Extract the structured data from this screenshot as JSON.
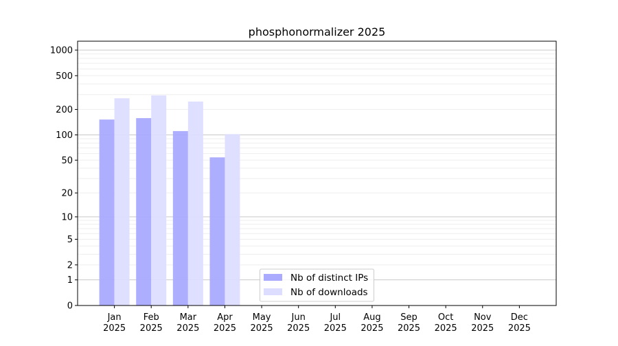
{
  "chart_data": {
    "type": "bar",
    "title": "phosphonormalizer 2025",
    "xlabel": "",
    "ylabel": "",
    "yscale": "log(1+y)",
    "ylim": [
      0,
      1273
    ],
    "yticks": [
      0,
      1,
      2,
      5,
      10,
      20,
      50,
      100,
      200,
      500,
      1000
    ],
    "grid": true,
    "legend_position": "lower-center",
    "categories": [
      "Jan\n2025",
      "Feb\n2025",
      "Mar\n2025",
      "Apr\n2025",
      "May\n2025",
      "Jun\n2025",
      "Jul\n2025",
      "Aug\n2025",
      "Sep\n2025",
      "Oct\n2025",
      "Nov\n2025",
      "Dec\n2025"
    ],
    "series": [
      {
        "name": "Nb of distinct IPs",
        "color": "#aaaaff",
        "values": [
          152,
          158,
          111,
          54,
          0,
          0,
          0,
          0,
          0,
          0,
          0,
          0
        ]
      },
      {
        "name": "Nb of downloads",
        "color": "#ddddff",
        "values": [
          271,
          293,
          248,
          102,
          0,
          0,
          0,
          0,
          0,
          0,
          0,
          0
        ]
      }
    ]
  }
}
